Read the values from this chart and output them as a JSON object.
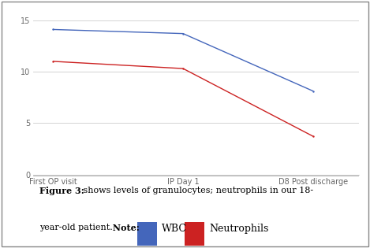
{
  "x_labels": [
    "First OP visit",
    "IP Day 1",
    "D8 Post discharge"
  ],
  "wbc_values": [
    14.1,
    13.7,
    8.1
  ],
  "neutrophil_values": [
    11.0,
    10.3,
    3.7
  ],
  "wbc_color": "#4466bb",
  "neutrophil_color": "#cc2222",
  "ylim": [
    0,
    16
  ],
  "yticks": [
    0,
    5,
    10,
    15
  ],
  "grid_color": "#cccccc",
  "bg_color": "#ffffff",
  "border_color": "#888888",
  "tick_label_color": "#666666",
  "tick_fontsize": 7,
  "caption_fontsize": 8,
  "legend_wbc": "WBC",
  "legend_neutrophils": "Neutrophils"
}
